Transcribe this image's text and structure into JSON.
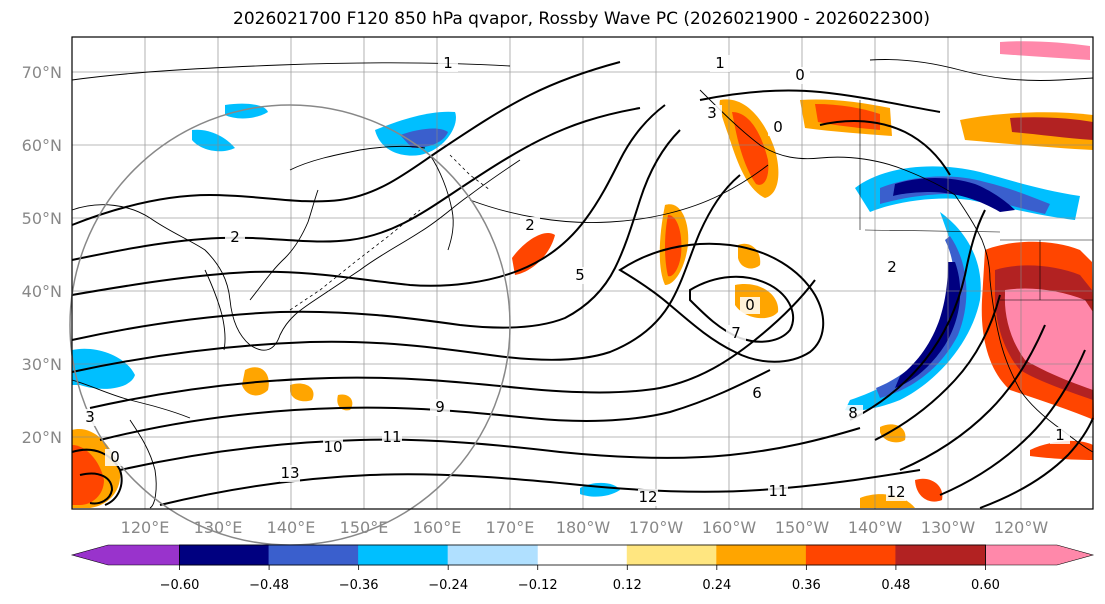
{
  "title": "2026021700 F120 850 hPa qvapor, Rossby Wave PC (2026021900 - 2026022300)",
  "lat_labels": [
    "70°N",
    "60°N",
    "50°N",
    "40°N",
    "30°N",
    "20°N"
  ],
  "lon_labels": [
    "120°E",
    "130°E",
    "140°E",
    "150°E",
    "160°E",
    "170°E",
    "180°W",
    "170°W",
    "160°W",
    "150°W",
    "140°W",
    "130°W",
    "120°W"
  ],
  "colorbar": {
    "ticks": [
      "−0.60",
      "−0.48",
      "−0.36",
      "−0.24",
      "−0.12",
      "0.12",
      "0.24",
      "0.36",
      "0.48",
      "0.60"
    ],
    "colors": [
      "#9933cc",
      "#000080",
      "#3a5fcd",
      "#00bfff",
      "#b0e0ff",
      "#ffffff",
      "#ffe680",
      "#ffa500",
      "#ff4500",
      "#b22222",
      "#ff88aa"
    ]
  },
  "contour_labels": [
    "1",
    "0",
    "0",
    "1",
    "2",
    "3",
    "5",
    "2",
    "7",
    "6",
    "8",
    "9",
    "10",
    "11",
    "11",
    "12",
    "12",
    "13",
    "1",
    "2",
    "0",
    "3",
    "0"
  ],
  "map_colors": {
    "grid": "#888888",
    "coast": "#000000",
    "circle": "#888888"
  }
}
